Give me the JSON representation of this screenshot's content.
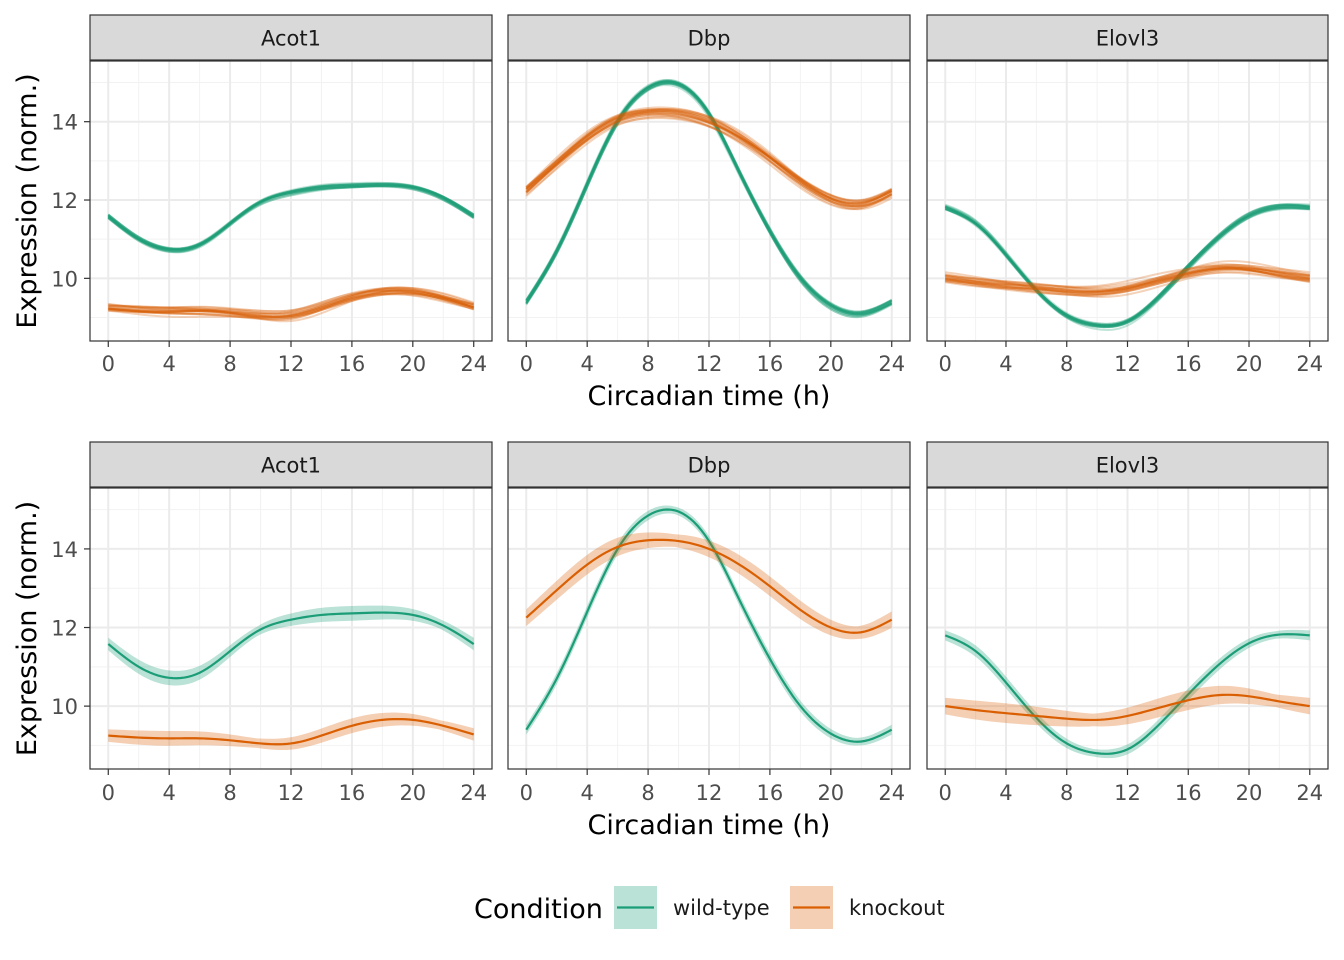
{
  "chart_data": {
    "type": "line",
    "x_axis_title": "Circadian time (h)",
    "y_axis_title": "Expression (norm.)",
    "xlim": [
      -1.2,
      25.2
    ],
    "ylim": [
      8.4,
      15.55
    ],
    "x_ticks": [
      0,
      4,
      8,
      12,
      16,
      20,
      24
    ],
    "y_ticks": [
      10,
      12,
      14
    ],
    "legend": {
      "title": "Condition",
      "position": "bottom",
      "entries": [
        {
          "label": "wild-type",
          "color": "#1b9e77"
        },
        {
          "label": "knockout",
          "color": "#d95f02"
        }
      ]
    },
    "rows": [
      {
        "name": "top",
        "style": "spaghetti",
        "replicates": 20
      },
      {
        "name": "bottom",
        "style": "mean-with-ribbon"
      }
    ],
    "panels": [
      "Acot1",
      "Dbp",
      "Elovl3"
    ],
    "x": [
      0,
      2,
      4,
      6,
      8,
      10,
      12,
      14,
      16,
      18,
      20,
      22,
      24
    ],
    "series": {
      "Acot1": [
        {
          "name": "wild-type",
          "values": [
            11.58,
            11.0,
            10.72,
            10.85,
            11.4,
            11.95,
            12.2,
            12.32,
            12.36,
            12.38,
            12.32,
            12.05,
            11.58
          ],
          "ribbon": 0.15
        },
        {
          "name": "knockout",
          "values": [
            9.25,
            9.2,
            9.18,
            9.18,
            9.13,
            9.05,
            9.05,
            9.25,
            9.5,
            9.65,
            9.65,
            9.5,
            9.28
          ],
          "ribbon": 0.15
        }
      ],
      "Dbp": [
        {
          "name": "wild-type",
          "values": [
            9.4,
            10.7,
            12.4,
            14.0,
            14.85,
            14.95,
            14.2,
            12.7,
            11.2,
            10.0,
            9.3,
            9.1,
            9.4
          ],
          "ribbon": 0.12
        },
        {
          "name": "knockout",
          "values": [
            12.25,
            12.95,
            13.6,
            14.05,
            14.22,
            14.2,
            14.0,
            13.6,
            13.05,
            12.45,
            12.0,
            11.88,
            12.2
          ],
          "ribbon": 0.2
        }
      ],
      "Elovl3": [
        {
          "name": "wild-type",
          "values": [
            11.8,
            11.4,
            10.6,
            9.7,
            9.05,
            8.8,
            8.9,
            9.5,
            10.3,
            11.05,
            11.6,
            11.82,
            11.8
          ],
          "ribbon": 0.12
        },
        {
          "name": "knockout",
          "values": [
            10.0,
            9.9,
            9.82,
            9.75,
            9.68,
            9.65,
            9.75,
            9.95,
            10.15,
            10.28,
            10.25,
            10.12,
            10.0
          ],
          "ribbon": 0.2
        }
      ]
    }
  }
}
